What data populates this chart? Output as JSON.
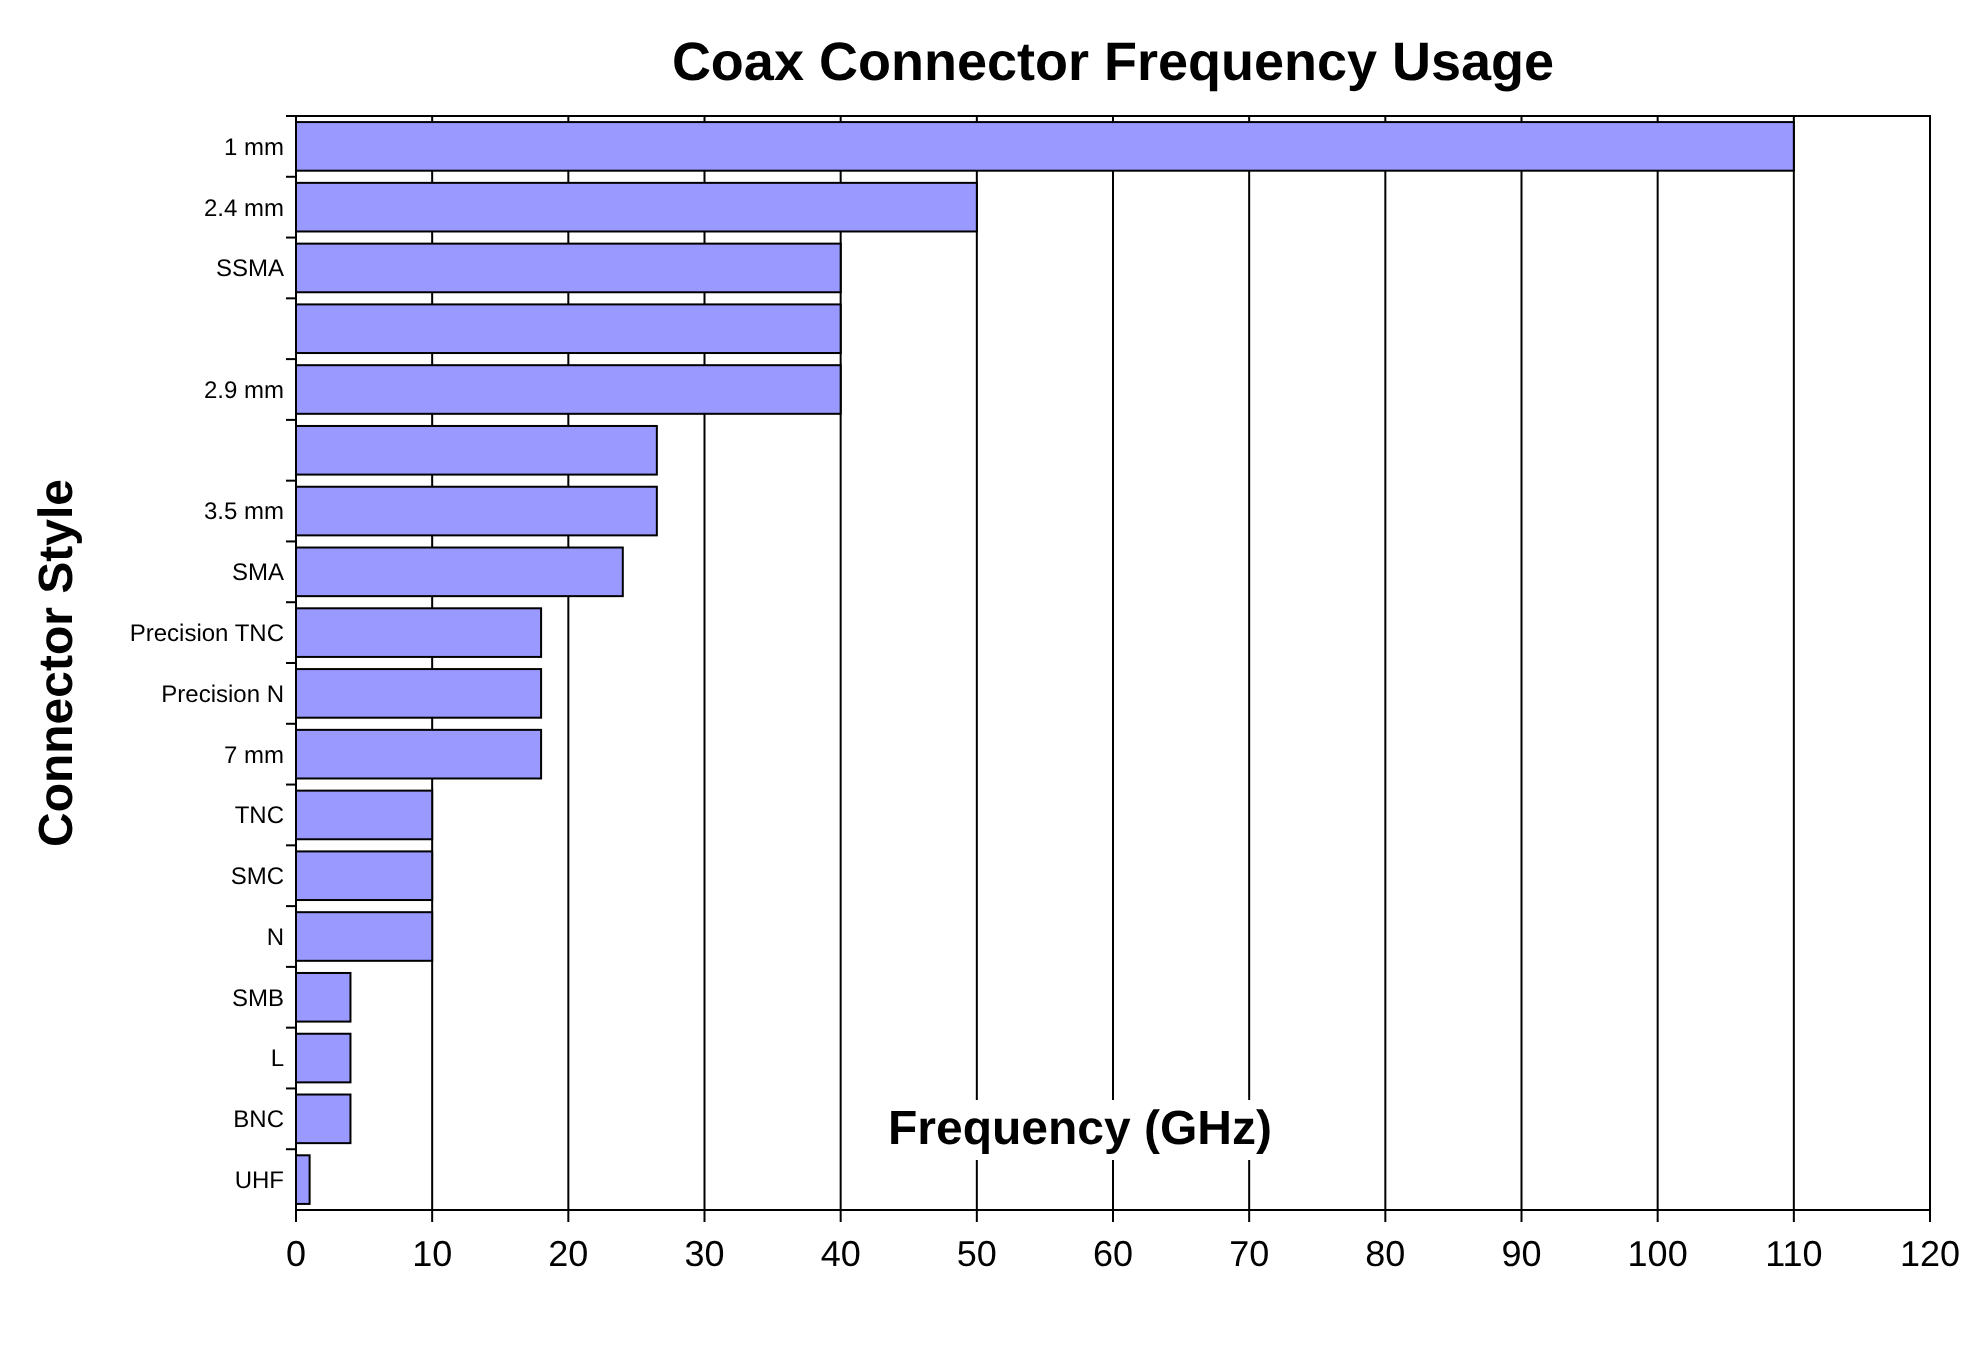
{
  "chart_data": {
    "type": "bar",
    "orientation": "horizontal",
    "title": "Coax Connector Frequency Usage",
    "xlabel": "Frequency (GHz)",
    "ylabel": "Connector Style",
    "categories": [
      "1 mm",
      "2.4 mm",
      "SSMA",
      null,
      "2.9 mm",
      null,
      "3.5 mm",
      "SMA",
      "Precision TNC",
      "Precision N",
      "7 mm",
      "TNC",
      "SMC",
      "N",
      "SMB",
      "L",
      "BNC",
      "UHF"
    ],
    "values": [
      110,
      50,
      40,
      40,
      40,
      26.5,
      26.5,
      24,
      18,
      18,
      18,
      10,
      10,
      10,
      4,
      4,
      4,
      1
    ],
    "color": "#9999ff",
    "xlim": [
      0,
      120
    ],
    "xticks": [
      0,
      10,
      20,
      30,
      40,
      50,
      60,
      70,
      80,
      90,
      100,
      110,
      120
    ],
    "grid": "x"
  }
}
